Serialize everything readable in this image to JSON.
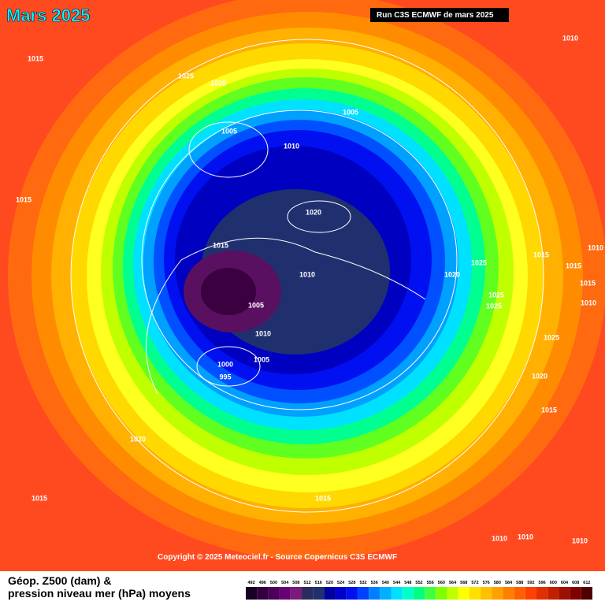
{
  "header": {
    "title": "Mars 2025",
    "run": "Run C3S ECMWF de mars 2025"
  },
  "contour_labels": [
    1010,
    1015,
    1025,
    1020,
    1005,
    1005,
    1010,
    1015,
    1020,
    1015,
    1025,
    1015,
    1010,
    1020,
    1010,
    1015,
    1015,
    1025,
    1005,
    1025,
    1010,
    1010,
    1025,
    1005,
    1000,
    995,
    1020,
    1015,
    1020,
    1015,
    1015,
    1010,
    1010,
    1010
  ],
  "copyright": "Copyright © 2025 Meteociel.fr - Source Copernicus C3S ECMWF",
  "legend": {
    "title_line1": "Géop. Z500 (dam) &",
    "title_line2": "pression niveau mer (hPa) moyens",
    "levels": [
      492,
      496,
      500,
      504,
      508,
      512,
      516,
      520,
      524,
      528,
      532,
      536,
      540,
      544,
      548,
      552,
      556,
      560,
      564,
      568,
      572,
      576,
      580,
      584,
      588,
      592,
      596,
      600,
      604,
      608,
      612
    ],
    "colors": [
      "#1a0026",
      "#33003d",
      "#4d0059",
      "#660073",
      "#7a1a7a",
      "#2b2b5e",
      "#20306f",
      "#0000a0",
      "#0000cd",
      "#0010f0",
      "#0040ff",
      "#0080ff",
      "#00b0ff",
      "#00e0ff",
      "#00ffcc",
      "#00ff80",
      "#40ff40",
      "#80ff00",
      "#c0ff00",
      "#ffff00",
      "#ffe000",
      "#ffc000",
      "#ffa000",
      "#ff8000",
      "#ff6000",
      "#ff4000",
      "#e03000",
      "#c02000",
      "#a01000",
      "#800000",
      "#500000"
    ]
  }
}
